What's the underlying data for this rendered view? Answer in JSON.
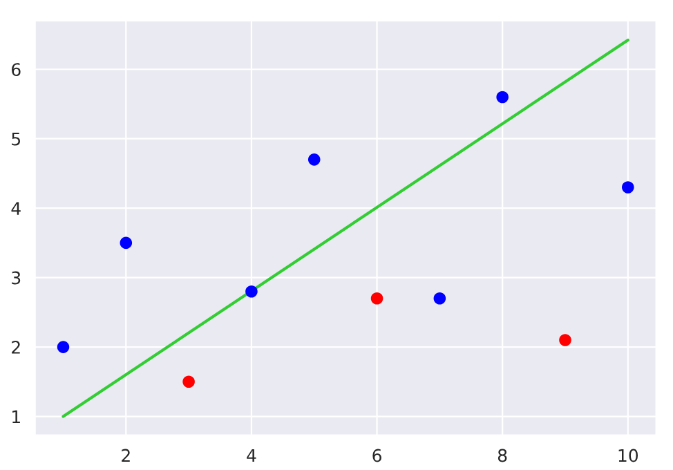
{
  "chart_data": {
    "type": "scatter",
    "x": [
      1,
      2,
      3,
      4,
      5,
      6,
      7,
      8,
      9,
      10
    ],
    "series": [
      {
        "values": [
          2.0,
          3.5,
          1.5,
          2.8,
          4.7,
          2.7,
          2.7,
          5.6,
          2.1,
          4.3
        ],
        "colors": [
          "#0000ff",
          "#0000ff",
          "#ff0000",
          "#0000ff",
          "#0000ff",
          "#ff0000",
          "#0000ff",
          "#0000ff",
          "#ff0000",
          "#0000ff"
        ],
        "marker": "circle"
      },
      {
        "type": "line",
        "x": [
          1,
          10
        ],
        "values": [
          1.0,
          6.42
        ],
        "color": "#32cd32",
        "line_style": "solid"
      }
    ],
    "xlim": [
      0.55,
      10.45
    ],
    "ylim": [
      0.73,
      6.7
    ],
    "xticks": [
      2,
      4,
      6,
      8,
      10
    ],
    "yticks": [
      1,
      2,
      3,
      4,
      5,
      6
    ],
    "grid": true
  }
}
